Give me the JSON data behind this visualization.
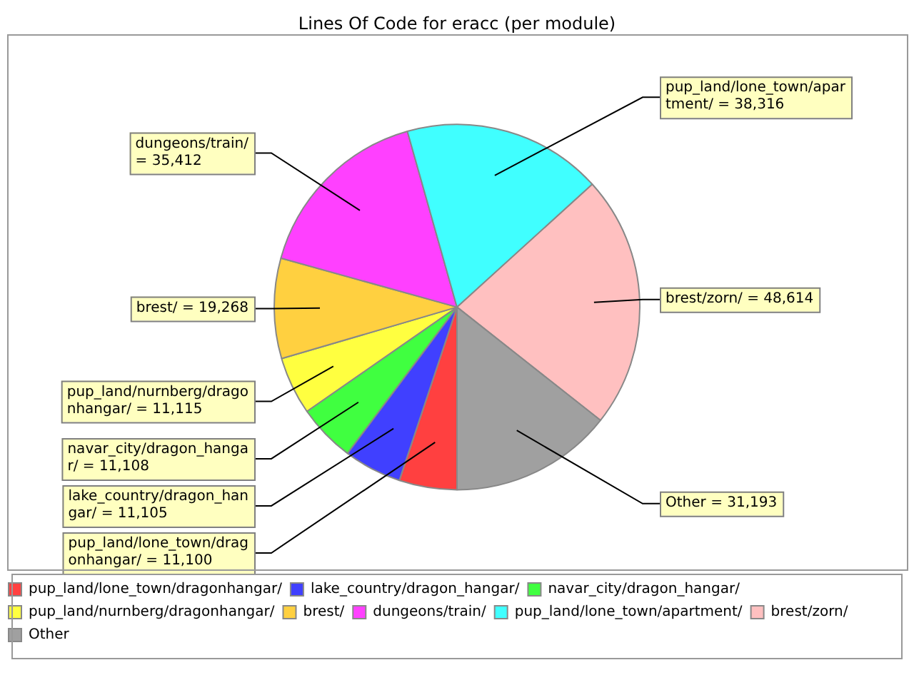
{
  "chart_data": {
    "type": "pie",
    "title": "Lines Of Code for eracc (per module)",
    "categories": [
      "pup_land/lone_town/dragonhangar/",
      "lake_country/dragon_hangar/",
      "navar_city/dragon_hangar/",
      "pup_land/nurnberg/dragonhangar/",
      "brest/",
      "dungeons/train/",
      "pup_land/lone_town/apartment/",
      "brest/zorn/",
      "Other"
    ],
    "values": [
      11100,
      11105,
      11108,
      11115,
      19268,
      35412,
      38316,
      48614,
      31193
    ],
    "colors": [
      "#ff4040",
      "#4040ff",
      "#40ff40",
      "#ffff40",
      "#ffd040",
      "#ff40ff",
      "#40ffff",
      "#ffc0c0",
      "#a0a0a0"
    ],
    "value_labels": [
      "= 11,100",
      "= 11,105",
      "= 11,108",
      "= 11,115",
      "= 19,268",
      "= 35,412",
      "= 38,316",
      "= 48,614",
      "= 31,193"
    ],
    "legend": "bottom"
  }
}
